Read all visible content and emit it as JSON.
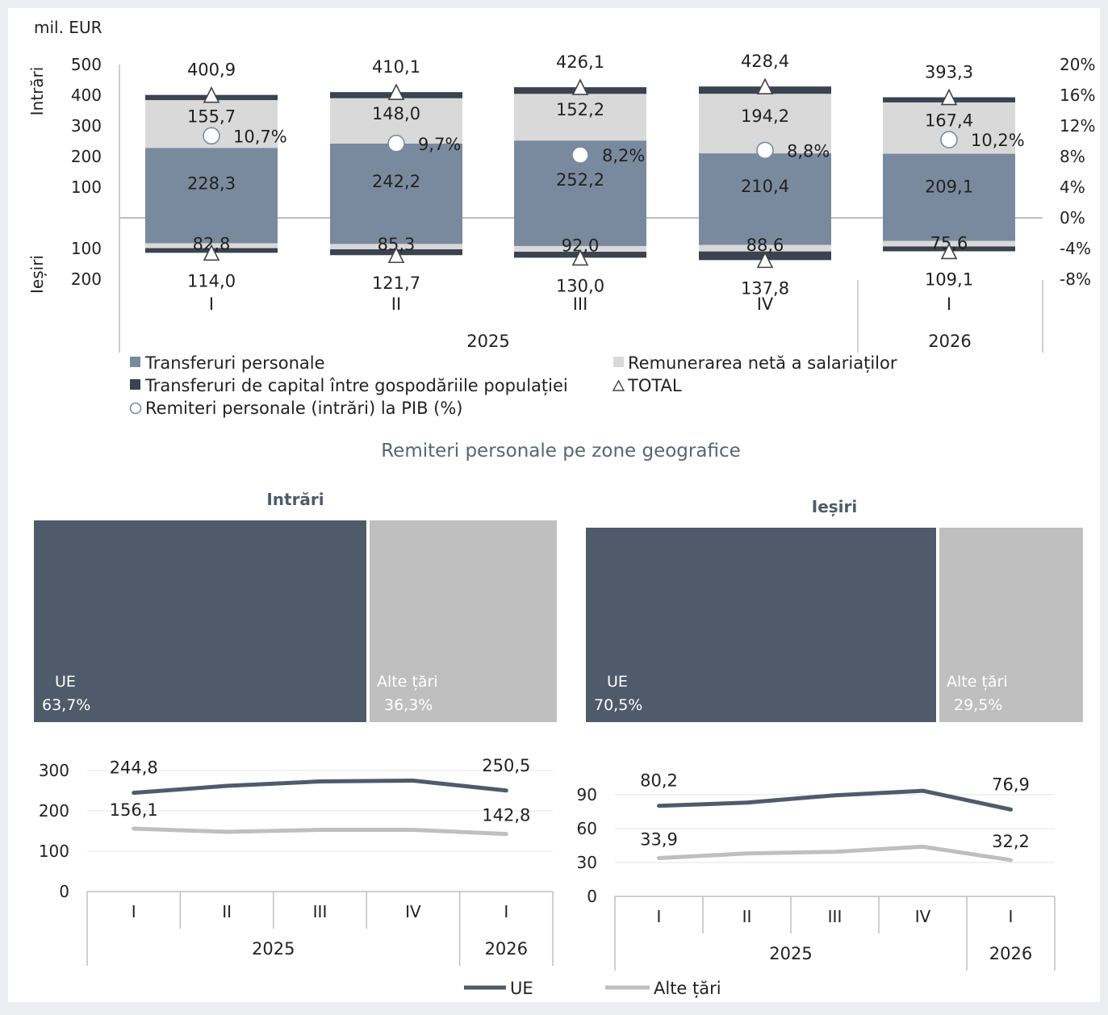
{
  "colors": {
    "transferuri": "#7a8a9e",
    "remunerare": "#d9d9d9",
    "capital": "#3b4250",
    "ue_block": "#4f5b6b",
    "alte_block": "#bfbfbf",
    "ue_line": "#4f5b6b",
    "alte_line": "#bfbfbf",
    "panel_bg": "#ffffff",
    "page_bg": "#eceef1"
  },
  "top_chart": {
    "unit_label": "mil. EUR",
    "side_label_in": "Intrări",
    "side_label_out": "Ieșiri",
    "legend": {
      "transferuri": "Transferuri personale",
      "remunerare": "Remunerarea netă a salariaților",
      "capital": "Transferuri de capital între gospodăriile populației",
      "total": "TOTAL",
      "pib": "Remiteri personale (intrări) la PIB (%)"
    }
  },
  "geo": {
    "title": "Remiteri personale pe zone geografice",
    "in_title": "Intrări",
    "out_title": "Ieșiri",
    "in_ue_label": "UE",
    "in_ue_pct": "63,7%",
    "in_alte_label": "Alte țări",
    "in_alte_pct": "36,3%",
    "out_ue_label": "UE",
    "out_ue_pct": "70,5%",
    "out_alte_label": "Alte țări",
    "out_alte_pct": "29,5%",
    "legend_ue": "UE",
    "legend_alte": "Alte țări"
  },
  "chart_data": [
    {
      "type": "bar",
      "stacked": true,
      "categories": [
        "I",
        "II",
        "III",
        "IV",
        "I"
      ],
      "category_groups": [
        {
          "label": "2025",
          "span": 4
        },
        {
          "label": "2026",
          "span": 1
        }
      ],
      "ylabel": "mil. EUR",
      "ylim": [
        -200,
        500
      ],
      "yticks": [
        "500",
        "400",
        "300",
        "200",
        "100",
        "",
        "100",
        "200"
      ],
      "y2lim": [
        -8,
        20
      ],
      "y2ticks": [
        "20%",
        "16%",
        "12%",
        "8%",
        "4%",
        "0%",
        "-4%",
        "-8%"
      ],
      "series": [
        {
          "name": "Transferuri personale",
          "inflows": [
            228.3,
            242.2,
            252.2,
            210.4,
            209.1
          ],
          "outflows": [
            82.8,
            85.3,
            92.0,
            88.6,
            75.6
          ],
          "labels_in": [
            "228,3",
            "242,2",
            "252,2",
            "210,4",
            "209,1"
          ],
          "labels_out": [
            "82,8",
            "85,3",
            "92,0",
            "88,6",
            "75,6"
          ]
        },
        {
          "name": "Remunerarea netă a salariaților",
          "inflows": [
            155.7,
            148.0,
            152.2,
            194.2,
            167.4
          ],
          "outflows": [
            16.0,
            17.3,
            18.6,
            21.0,
            17.7
          ],
          "labels_in": [
            "155,7",
            "148,0",
            "152,2",
            "194,2",
            "167,4"
          ]
        },
        {
          "name": "Transferuri de capital între gospodăriile populației",
          "inflows": [
            16.9,
            19.9,
            21.7,
            23.8,
            16.8
          ],
          "outflows": [
            15.2,
            19.1,
            19.4,
            28.2,
            15.8
          ]
        },
        {
          "name": "TOTAL",
          "inflows": [
            400.9,
            410.1,
            426.1,
            428.4,
            393.3
          ],
          "outflows": [
            114.0,
            121.7,
            130.0,
            137.8,
            109.1
          ],
          "labels_in": [
            "400,9",
            "410,1",
            "426,1",
            "428,4",
            "393,3"
          ],
          "labels_out": [
            "114,0",
            "121,7",
            "130,0",
            "137,8",
            "109,1"
          ]
        },
        {
          "name": "Remiteri personale (intrări) la PIB (%)",
          "axis": "right",
          "values": [
            10.7,
            9.7,
            8.2,
            8.8,
            10.2
          ],
          "labels": [
            "10,7%",
            "9,7%",
            "8,2%",
            "8,8%",
            "10,2%"
          ]
        }
      ]
    },
    {
      "type": "line",
      "title": "Intrări",
      "categories": [
        "I",
        "II",
        "III",
        "IV",
        "I"
      ],
      "category_groups": [
        {
          "label": "2025",
          "span": 4
        },
        {
          "label": "2026",
          "span": 1
        }
      ],
      "ylim": [
        0,
        300
      ],
      "yticks": [
        "300",
        "200",
        "100",
        "0"
      ],
      "series": [
        {
          "name": "UE",
          "values": [
            244.8,
            262.0,
            273.0,
            275.0,
            250.5
          ],
          "labels": [
            "244,8",
            "",
            "",
            "",
            "250,5"
          ]
        },
        {
          "name": "Alte țări",
          "values": [
            156.1,
            148.0,
            153.0,
            153.0,
            142.8
          ],
          "labels": [
            "156,1",
            "",
            "",
            "",
            "142,8"
          ]
        }
      ]
    },
    {
      "type": "line",
      "title": "Ieșiri",
      "categories": [
        "I",
        "II",
        "III",
        "IV",
        "I"
      ],
      "category_groups": [
        {
          "label": "2025",
          "span": 4
        },
        {
          "label": "2026",
          "span": 1
        }
      ],
      "ylim": [
        0,
        90
      ],
      "yticks": [
        "90",
        "60",
        "30",
        "0"
      ],
      "series": [
        {
          "name": "UE",
          "values": [
            80.2,
            83.0,
            89.5,
            93.5,
            76.9
          ],
          "labels": [
            "80,2",
            "",
            "",
            "",
            "76,9"
          ]
        },
        {
          "name": "Alte țări",
          "values": [
            33.9,
            38.0,
            39.5,
            44.0,
            32.2
          ],
          "labels": [
            "33,9",
            "",
            "",
            "",
            "32,2"
          ]
        }
      ]
    }
  ]
}
